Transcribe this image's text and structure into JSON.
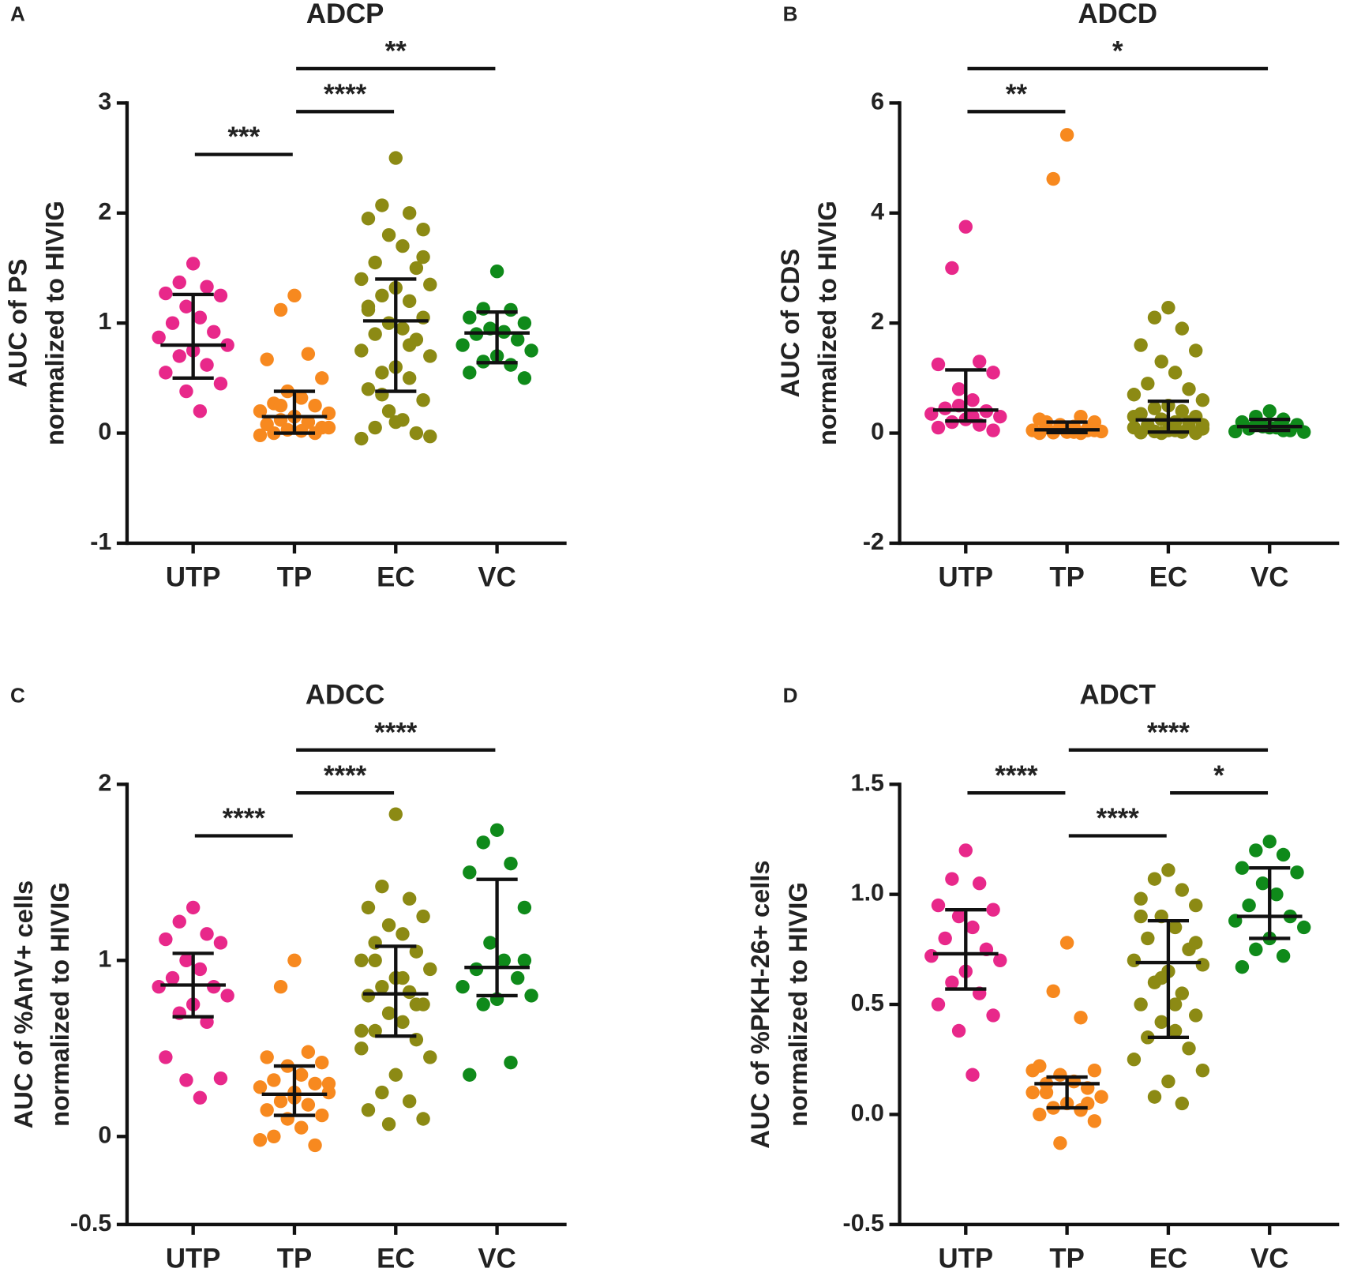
{
  "chart_data": [
    {
      "type": "dotplot",
      "panel": "A",
      "title": "ADCP",
      "ylabel": [
        "AUC of PS",
        "normalized to HIVIG"
      ],
      "categories": [
        "UTP",
        "TP",
        "EC",
        "VC"
      ],
      "ylim": [
        -1,
        3
      ],
      "yticks": [
        -1,
        0,
        1,
        2,
        3
      ],
      "groups": [
        {
          "color": "#e8288a",
          "values": [
            1.54,
            1.37,
            1.33,
            1.27,
            1.25,
            1.15,
            1.05,
            1.0,
            0.92,
            0.87,
            0.8,
            0.75,
            0.7,
            0.62,
            0.55,
            0.45,
            0.38,
            0.2
          ],
          "median": 0.8,
          "q1": 0.5,
          "q3": 1.26
        },
        {
          "color": "#f7891f",
          "values": [
            1.25,
            1.12,
            0.72,
            0.67,
            0.5,
            0.38,
            0.32,
            0.27,
            0.25,
            0.2,
            0.18,
            0.15,
            0.12,
            0.1,
            0.08,
            0.05,
            0.03,
            0.02,
            0,
            0,
            -0.02,
            0.05,
            0.15,
            0.25,
            0.1
          ],
          "median": 0.15,
          "q1": 0,
          "q3": 0.38
        },
        {
          "color": "#8c8a14",
          "values": [
            2.5,
            2.07,
            2.0,
            1.95,
            1.85,
            1.8,
            1.7,
            1.55,
            1.5,
            1.4,
            1.35,
            1.32,
            1.25,
            1.2,
            1.12,
            1.05,
            1.0,
            0.95,
            0.9,
            0.85,
            0.75,
            0.7,
            0.6,
            0.55,
            0.5,
            0.4,
            0.3,
            0.2,
            0.12,
            0.05,
            0,
            -0.05,
            -0.03,
            0.1,
            0.35,
            0.8,
            1.15,
            1.6
          ],
          "median": 1.02,
          "q1": 0.38,
          "q3": 1.4
        },
        {
          "color": "#0f8a1a",
          "values": [
            1.47,
            1.13,
            1.12,
            1.05,
            1.0,
            0.95,
            0.92,
            0.9,
            0.85,
            0.8,
            0.75,
            0.7,
            0.65,
            0.62,
            0.55,
            0.5
          ],
          "median": 0.91,
          "q1": 0.64,
          "q3": 1.1
        }
      ],
      "comparisons": [
        {
          "from": 0,
          "to": 1,
          "label": "***"
        },
        {
          "from": 1,
          "to": 2,
          "label": "****"
        },
        {
          "from": 1,
          "to": 3,
          "label": "**"
        }
      ]
    },
    {
      "type": "dotplot",
      "panel": "B",
      "title": "ADCD",
      "ylabel": [
        "AUC of CDS",
        "normalized to HIVIG"
      ],
      "categories": [
        "UTP",
        "TP",
        "EC",
        "VC"
      ],
      "ylim": [
        -2,
        6
      ],
      "yticks": [
        -2,
        0,
        2,
        4,
        6
      ],
      "groups": [
        {
          "color": "#e8288a",
          "values": [
            3.75,
            3.0,
            1.3,
            1.25,
            1.1,
            0.8,
            0.6,
            0.45,
            0.4,
            0.35,
            0.3,
            0.25,
            0.2,
            0.15,
            0.1,
            0.05,
            0.5,
            0.3
          ],
          "median": 0.42,
          "q1": 0.22,
          "q3": 1.15
        },
        {
          "color": "#f7891f",
          "values": [
            5.42,
            4.62,
            0.3,
            0.25,
            0.2,
            0.15,
            0.12,
            0.1,
            0.08,
            0.05,
            0.03,
            0.02,
            0.01,
            0,
            0,
            0.05,
            0.1,
            0.02,
            0.2,
            0.05
          ],
          "median": 0.06,
          "q1": 0.01,
          "q3": 0.2
        },
        {
          "color": "#8c8a14",
          "values": [
            2.28,
            2.1,
            1.9,
            1.6,
            1.5,
            1.3,
            1.1,
            0.9,
            0.8,
            0.7,
            0.6,
            0.5,
            0.45,
            0.4,
            0.35,
            0.3,
            0.25,
            0.2,
            0.15,
            0.12,
            0.1,
            0.08,
            0.05,
            0.03,
            0.02,
            0.01,
            0,
            0,
            0.05,
            0.1,
            0.2,
            0.3,
            0.15
          ],
          "median": 0.24,
          "q1": 0.02,
          "q3": 0.58
        },
        {
          "color": "#0f8a1a",
          "values": [
            0.4,
            0.3,
            0.25,
            0.2,
            0.15,
            0.12,
            0.1,
            0.08,
            0.05,
            0.03,
            0.02,
            0.1,
            0.15,
            0.05
          ],
          "median": 0.12,
          "q1": 0.05,
          "q3": 0.25
        }
      ],
      "comparisons": [
        {
          "from": 0,
          "to": 1,
          "label": "**"
        },
        {
          "from": 0,
          "to": 3,
          "label": "*"
        }
      ]
    },
    {
      "type": "dotplot",
      "panel": "C",
      "title": "ADCC",
      "ylabel": [
        "AUC of %AnV+ cells",
        "normalized to HIVIG"
      ],
      "categories": [
        "UTP",
        "TP",
        "EC",
        "VC"
      ],
      "ylim": [
        -0.5,
        2
      ],
      "yticks": [
        -0.5,
        0,
        1,
        2
      ],
      "groups": [
        {
          "color": "#e8288a",
          "values": [
            1.3,
            1.22,
            1.15,
            1.12,
            1.1,
            1.0,
            0.95,
            0.9,
            0.85,
            0.85,
            0.8,
            0.75,
            0.7,
            0.65,
            0.45,
            0.33,
            0.32,
            0.22
          ],
          "median": 0.86,
          "q1": 0.68,
          "q3": 1.04
        },
        {
          "color": "#f7891f",
          "values": [
            1.0,
            0.85,
            0.48,
            0.45,
            0.42,
            0.4,
            0.35,
            0.32,
            0.3,
            0.28,
            0.25,
            0.22,
            0.2,
            0.18,
            0.15,
            0.12,
            0.1,
            0.05,
            0,
            -0.05,
            -0.02,
            0.3,
            0.25
          ],
          "median": 0.24,
          "q1": 0.12,
          "q3": 0.4
        },
        {
          "color": "#8c8a14",
          "values": [
            1.83,
            1.42,
            1.35,
            1.3,
            1.25,
            1.2,
            1.15,
            1.1,
            1.05,
            1.0,
            0.95,
            0.9,
            0.85,
            0.82,
            0.8,
            0.75,
            0.7,
            0.65,
            0.6,
            0.55,
            0.5,
            0.45,
            0.35,
            0.25,
            0.2,
            0.15,
            0.1,
            0.07,
            0.9,
            1.0,
            0.75,
            0.6
          ],
          "median": 0.81,
          "q1": 0.57,
          "q3": 1.08
        },
        {
          "color": "#0f8a1a",
          "values": [
            1.74,
            1.67,
            1.55,
            1.5,
            1.3,
            1.1,
            1.0,
            0.95,
            0.9,
            0.85,
            0.8,
            0.78,
            0.75,
            0.42,
            0.35,
            1.0
          ],
          "median": 0.96,
          "q1": 0.8,
          "q3": 1.46
        }
      ],
      "comparisons": [
        {
          "from": 0,
          "to": 1,
          "label": "****"
        },
        {
          "from": 1,
          "to": 2,
          "label": "****"
        },
        {
          "from": 1,
          "to": 3,
          "label": "****"
        }
      ]
    },
    {
      "type": "dotplot",
      "panel": "D",
      "title": "ADCT",
      "ylabel": [
        "AUC of %PKH-26+ cells",
        "normalized to HIVIG"
      ],
      "categories": [
        "UTP",
        "TP",
        "EC",
        "VC"
      ],
      "ylim": [
        -0.5,
        1.5
      ],
      "yticks": [
        -0.5,
        {
          "value": 0,
          "label": "0.0"
        },
        0.5,
        {
          "value": 1,
          "label": "1.0"
        },
        1.5
      ],
      "groups": [
        {
          "color": "#e8288a",
          "values": [
            1.2,
            1.07,
            1.05,
            0.95,
            0.93,
            0.9,
            0.85,
            0.8,
            0.75,
            0.72,
            0.7,
            0.65,
            0.6,
            0.55,
            0.5,
            0.45,
            0.38,
            0.18
          ],
          "median": 0.73,
          "q1": 0.57,
          "q3": 0.93
        },
        {
          "color": "#f7891f",
          "values": [
            0.78,
            0.56,
            0.44,
            0.22,
            0.2,
            0.18,
            0.15,
            0.14,
            0.12,
            0.1,
            0.08,
            0.05,
            0.03,
            0.02,
            0,
            -0.03,
            -0.13,
            0.15,
            0.1,
            0.05,
            0.2
          ],
          "median": 0.14,
          "q1": 0.03,
          "q3": 0.17
        },
        {
          "color": "#8c8a14",
          "values": [
            1.11,
            1.07,
            1.02,
            0.98,
            0.95,
            0.9,
            0.85,
            0.8,
            0.75,
            0.7,
            0.68,
            0.65,
            0.6,
            0.55,
            0.5,
            0.45,
            0.42,
            0.38,
            0.35,
            0.3,
            0.25,
            0.2,
            0.15,
            0.08,
            0.05,
            0.9,
            0.78,
            0.62,
            0.5,
            0.35
          ],
          "median": 0.69,
          "q1": 0.35,
          "q3": 0.88
        },
        {
          "color": "#0f8a1a",
          "values": [
            1.24,
            1.2,
            1.18,
            1.12,
            1.1,
            1.05,
            1.0,
            0.95,
            0.9,
            0.88,
            0.85,
            0.8,
            0.75,
            0.72,
            0.67
          ],
          "median": 0.9,
          "q1": 0.8,
          "q3": 1.12
        }
      ],
      "comparisons": [
        {
          "from": 1,
          "to": 2,
          "label": "****"
        },
        {
          "from": 0,
          "to": 1,
          "label": "****"
        },
        {
          "from": 2,
          "to": 3,
          "label": "*"
        },
        {
          "from": 1,
          "to": 3,
          "label": "****"
        }
      ]
    }
  ]
}
